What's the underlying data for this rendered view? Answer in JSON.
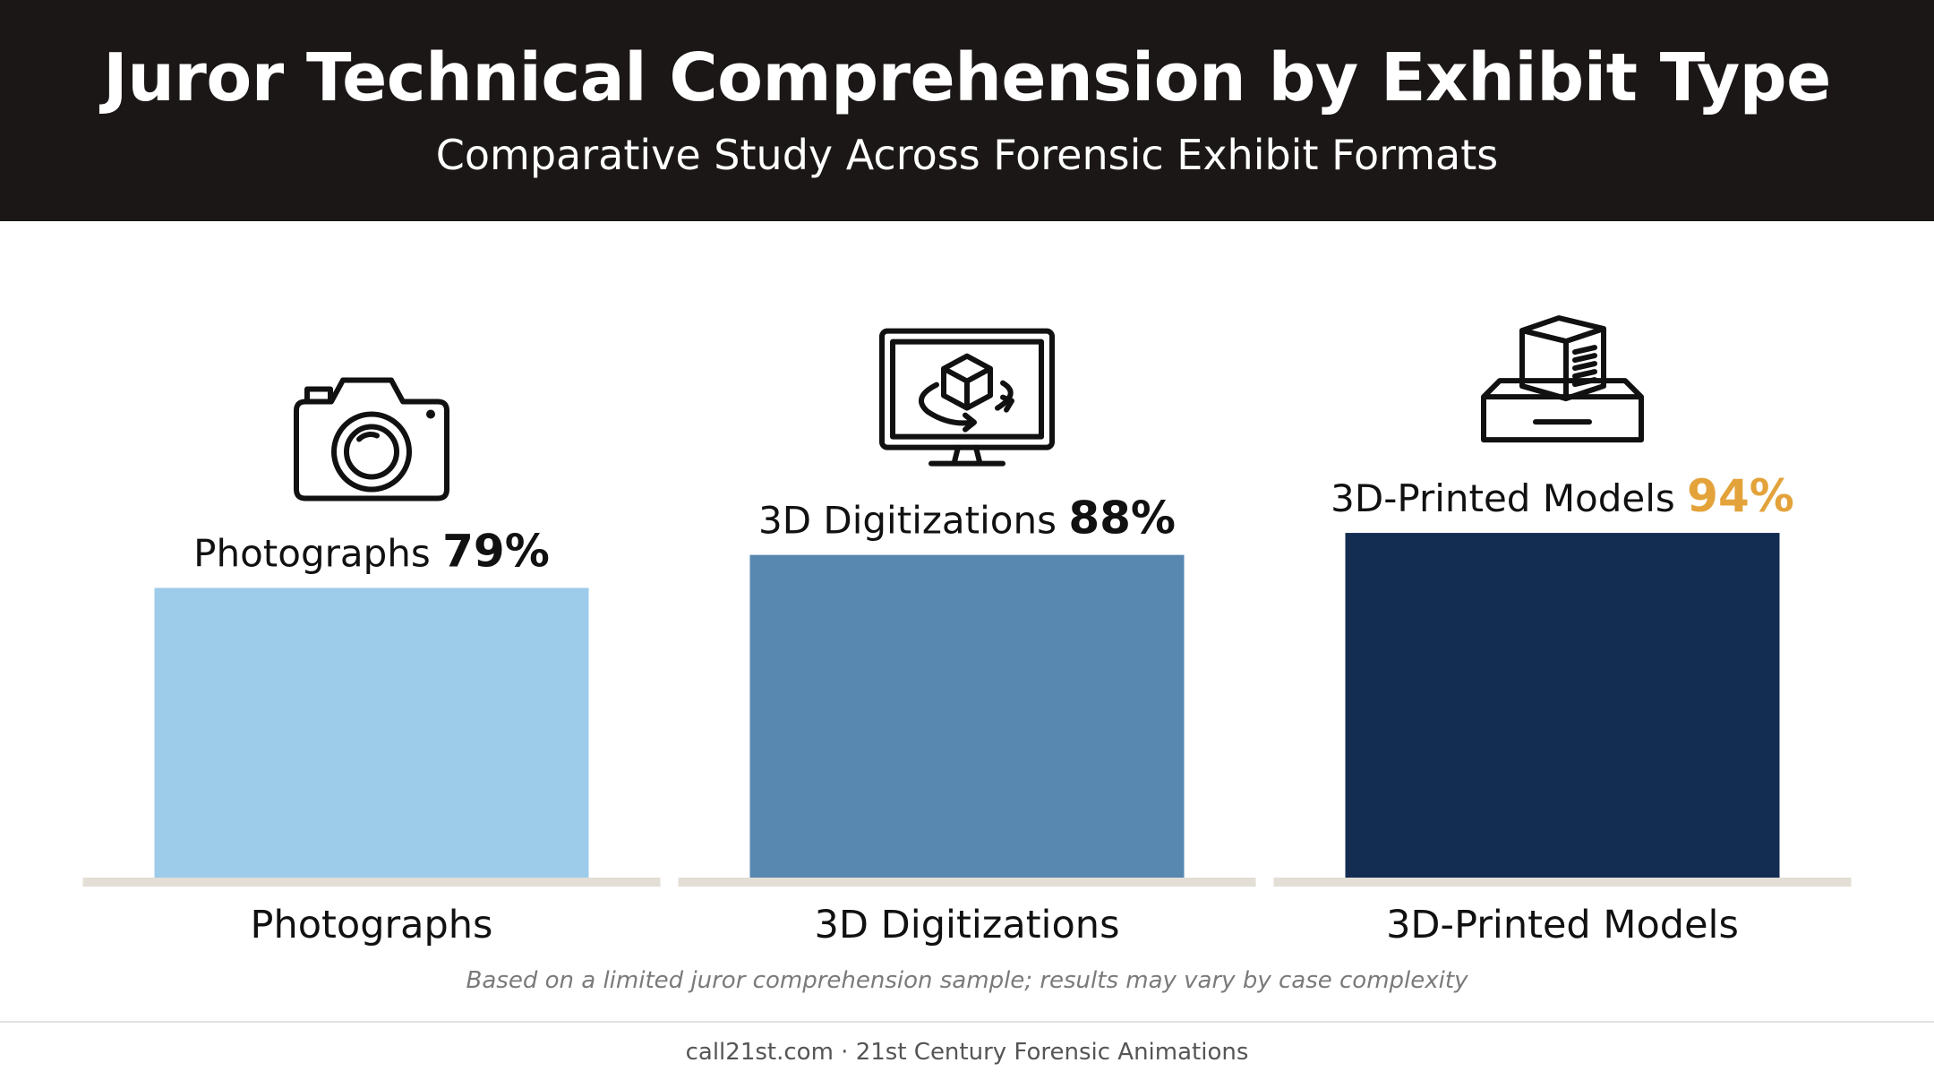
{
  "header": {
    "title": "Juror Technical Comprehension by Exhibit Type",
    "subtitle": "Comparative Study Across Forensic Exhibit Formats"
  },
  "chart_data": {
    "type": "bar",
    "title": "Juror Technical Comprehension by Exhibit Type",
    "subtitle": "Comparative Study Across Forensic Exhibit Formats",
    "categories": [
      "Photographs",
      "3D Digitizations",
      "3D-Printed Models"
    ],
    "values": [
      79,
      88,
      94
    ],
    "value_labels": [
      "79%",
      "88%",
      "94%"
    ],
    "icons": [
      "camera-icon",
      "monitor-3d-cube-icon",
      "3d-printer-icon"
    ],
    "bar_colors": [
      "#9dcbea",
      "#5887b0",
      "#132c52"
    ],
    "highlight_color": "#e3a33a",
    "highlight_index": 2,
    "ylim": [
      0,
      100
    ],
    "grid": false,
    "legend": "none"
  },
  "note": "Based on a limited juror comprehension sample; results may vary by case complexity",
  "footer": "call21st.com · 21st Century Forensic Animations"
}
